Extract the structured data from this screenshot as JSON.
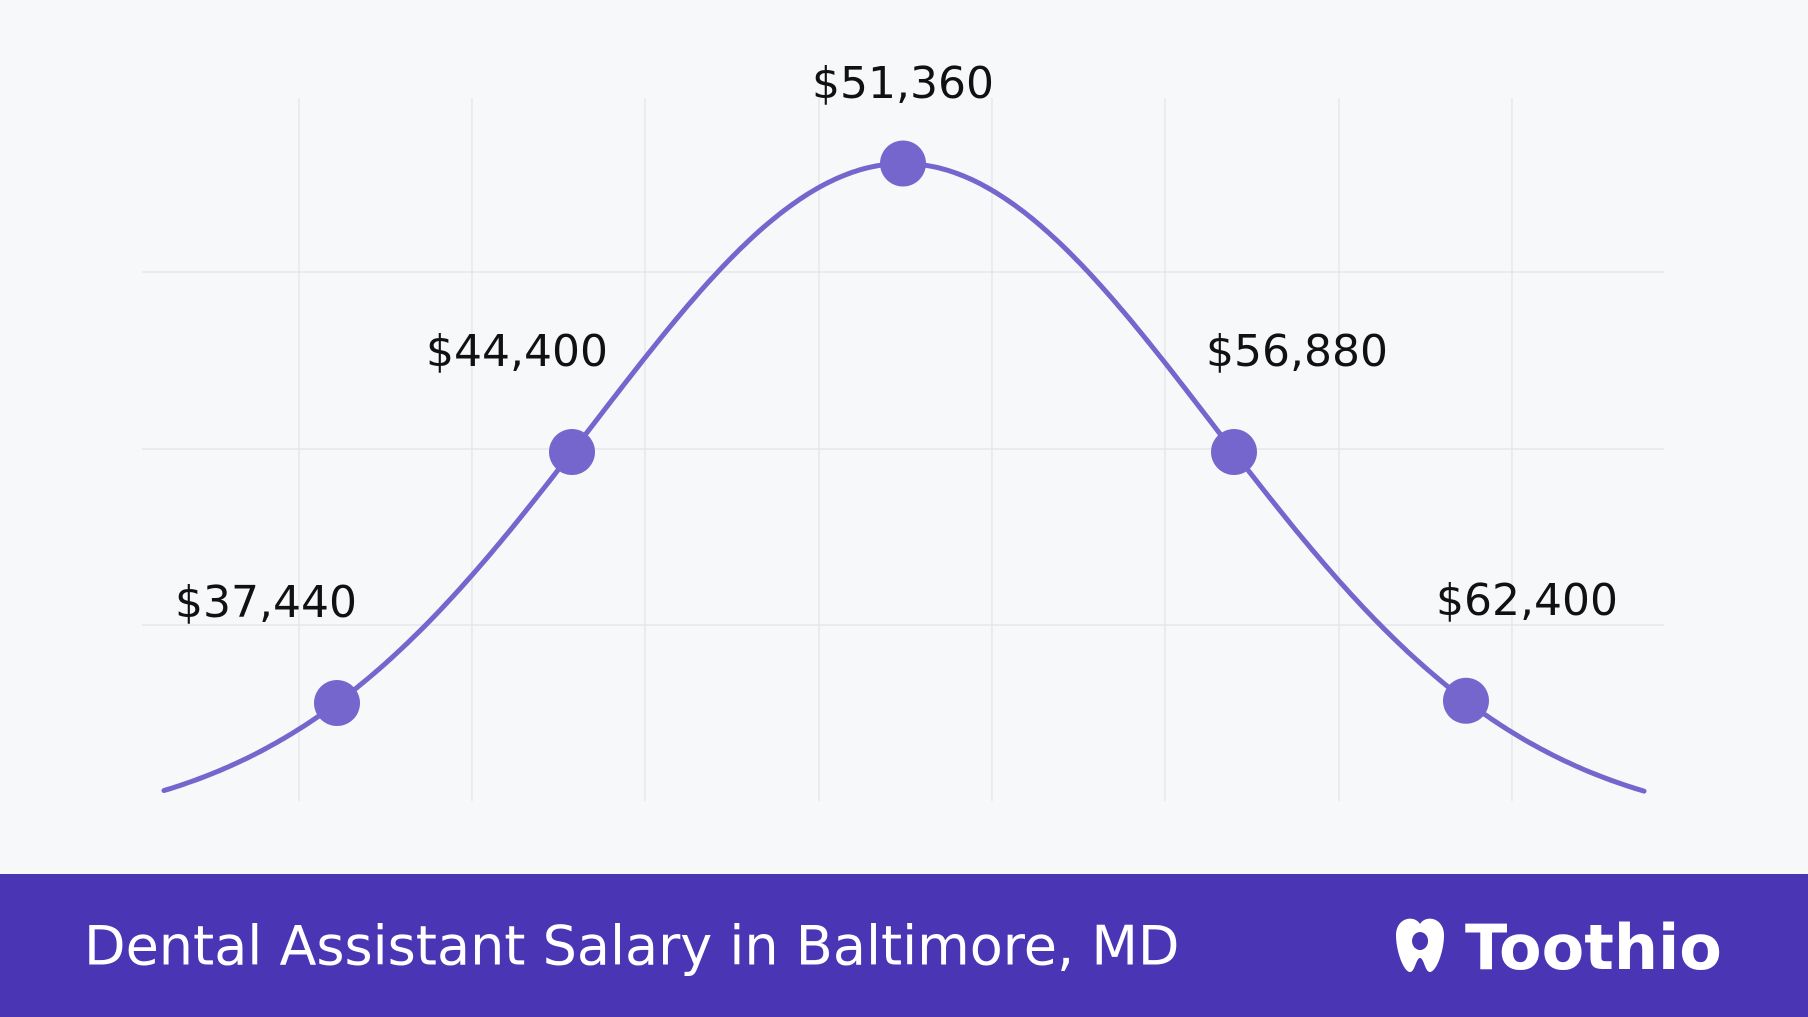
{
  "chart_data": {
    "type": "bell",
    "title": "Dental Assistant Salary in Baltimore, MD",
    "brand": "Toothio",
    "values": [
      37440,
      44400,
      51360,
      56880,
      62400
    ],
    "value_labels": [
      "$37,440",
      "$44,400",
      "$51,360",
      "$56,880",
      "$62,400"
    ],
    "color": "#7466cc",
    "grid": true
  }
}
